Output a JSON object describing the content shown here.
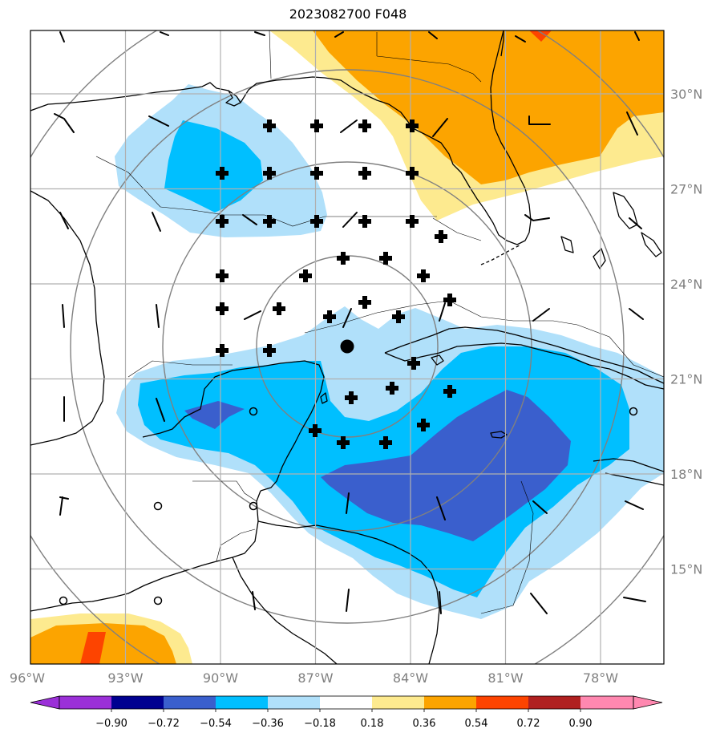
{
  "title": "2023082700 F048",
  "map": {
    "lon_range": [
      -96,
      -76
    ],
    "lat_range": [
      12.5,
      32.5
    ],
    "lon_ticks": [
      "96°W",
      "93°W",
      "90°W",
      "87°W",
      "84°W",
      "81°W",
      "78°W"
    ],
    "lat_ticks": [
      "30°N",
      "27°N",
      "24°N",
      "21°N",
      "18°N",
      "15°N"
    ],
    "storm_center": {
      "lon": -86,
      "lat": 22.0
    },
    "field_colors": {
      "pos_018_036": "#fdea8f",
      "pos_036_054": "#fca400",
      "pos_054_072": "#fd4400",
      "neg_018_036": "#b0e0fa",
      "neg_036_054": "#00bfff",
      "neg_054_072": "#3a5fcd"
    }
  },
  "colorbar": {
    "labels": [
      "−0.90",
      "−0.72",
      "−0.54",
      "−0.36",
      "−0.18",
      "0.18",
      "0.36",
      "0.54",
      "0.72",
      "0.90"
    ],
    "colors": [
      "#9b30d8",
      "#000090",
      "#3a5fcd",
      "#00bfff",
      "#b0e0fa",
      "#ffffff",
      "#fdea8f",
      "#fca400",
      "#fd4400",
      "#b02020",
      "#ff88b0"
    ]
  }
}
